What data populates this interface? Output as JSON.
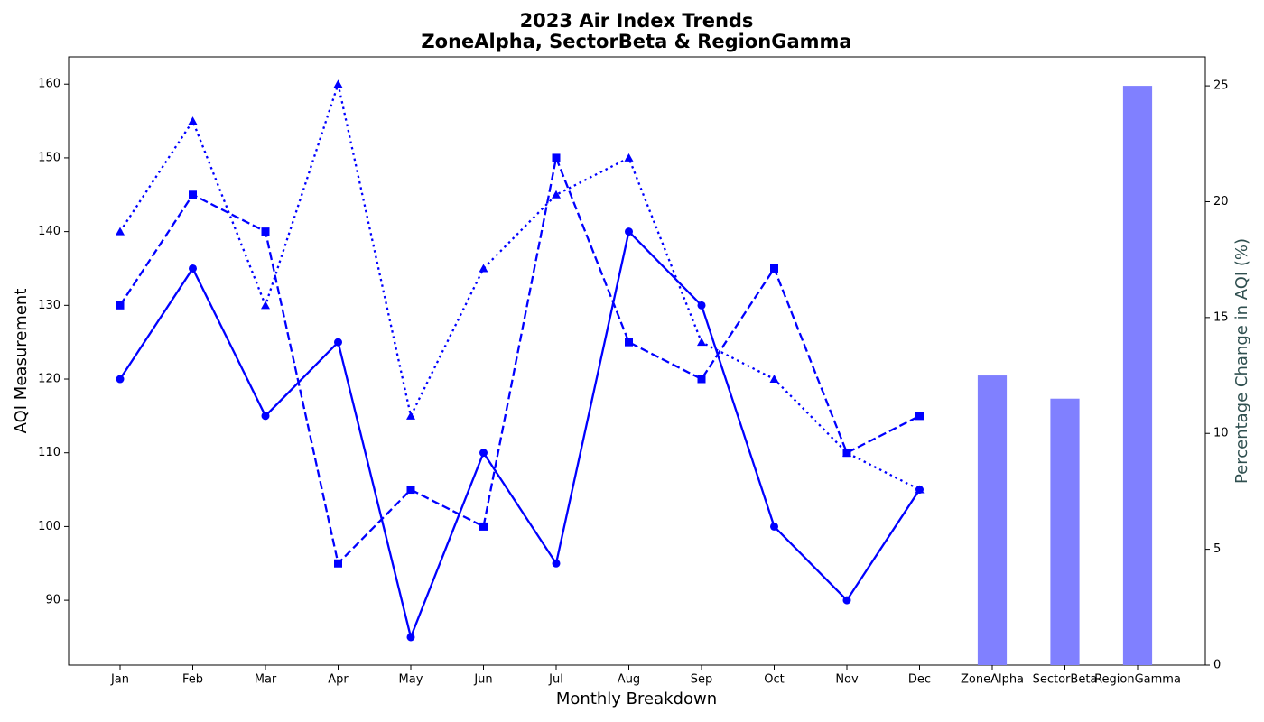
{
  "chart_data": {
    "type": "line",
    "title": [
      "2023 Air Index Trends",
      "ZoneAlpha, SectorBeta & RegionGamma"
    ],
    "xlabel": "Monthly Breakdown",
    "ylabel": "AQI Measurement",
    "y2label": "Percentage Change in AQI (%)",
    "categories": [
      "Jan",
      "Feb",
      "Mar",
      "Apr",
      "May",
      "Jun",
      "Jul",
      "Aug",
      "Sep",
      "Oct",
      "Nov",
      "Dec",
      "ZoneAlpha",
      "SectorBeta",
      "RegionGamma"
    ],
    "series": [
      {
        "type": "line",
        "color": "#0000ff",
        "linestyle": "solid",
        "marker": "circle",
        "values": [
          120,
          135,
          115,
          125,
          85,
          110,
          95,
          140,
          130,
          100,
          90,
          105,
          null,
          null,
          null
        ]
      },
      {
        "type": "line",
        "color": "#0000ff",
        "linestyle": "dashed",
        "marker": "square",
        "values": [
          130,
          145,
          140,
          95,
          105,
          100,
          150,
          125,
          120,
          135,
          110,
          115,
          null,
          null,
          null
        ]
      },
      {
        "type": "line",
        "color": "#0000ff",
        "linestyle": "dotted",
        "marker": "triangle",
        "values": [
          140,
          155,
          130,
          160,
          115,
          135,
          145,
          150,
          125,
          120,
          110,
          105,
          null,
          null,
          null
        ]
      },
      {
        "type": "bar",
        "color": "#8080ff",
        "axis": "y2",
        "values": [
          null,
          null,
          null,
          null,
          null,
          null,
          null,
          null,
          null,
          null,
          null,
          null,
          12.5,
          11.5,
          25
        ]
      }
    ],
    "ylim": [
      81.2,
      163.7
    ],
    "yticks": [
      90,
      100,
      110,
      120,
      130,
      140,
      150,
      160
    ],
    "y2lim": [
      0,
      26.25
    ],
    "y2ticks": [
      0,
      5,
      10,
      15,
      20,
      25
    ],
    "y2label_color": "#2f4f4f",
    "grid": false
  }
}
